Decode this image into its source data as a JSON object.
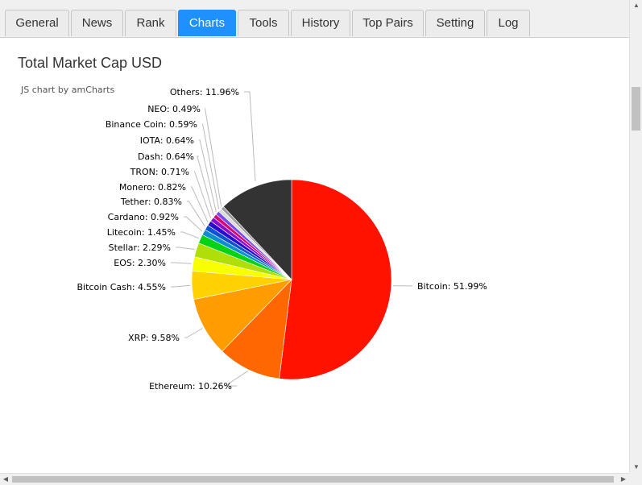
{
  "tabs": [
    {
      "label": "General",
      "active": false
    },
    {
      "label": "News",
      "active": false
    },
    {
      "label": "Rank",
      "active": false
    },
    {
      "label": "Charts",
      "active": true
    },
    {
      "label": "Tools",
      "active": false
    },
    {
      "label": "History",
      "active": false
    },
    {
      "label": "Top Pairs",
      "active": false
    },
    {
      "label": "Setting",
      "active": false
    },
    {
      "label": "Log",
      "active": false
    }
  ],
  "chart_title": "Total Market Cap USD",
  "credit": "JS chart by amCharts",
  "scrollbars": {
    "up": "▲",
    "down": "▼",
    "left": "◀",
    "right": "▶"
  },
  "chart_data": {
    "type": "pie",
    "title": "Total Market Cap USD",
    "slices": [
      {
        "name": "Bitcoin",
        "value": 51.99,
        "label": "Bitcoin: 51.99%",
        "color": "#ff1200"
      },
      {
        "name": "Ethereum",
        "value": 10.26,
        "label": "Ethereum: 10.26%",
        "color": "#ff6700"
      },
      {
        "name": "XRP",
        "value": 9.58,
        "label": "XRP: 9.58%",
        "color": "#ff9d00"
      },
      {
        "name": "Bitcoin Cash",
        "value": 4.55,
        "label": "Bitcoin Cash: 4.55%",
        "color": "#ffd200"
      },
      {
        "name": "EOS",
        "value": 2.3,
        "label": "EOS: 2.30%",
        "color": "#f8ff00"
      },
      {
        "name": "Stellar",
        "value": 2.29,
        "label": "Stellar: 2.29%",
        "color": "#b0de09"
      },
      {
        "name": "Litecoin",
        "value": 1.45,
        "label": "Litecoin: 1.45%",
        "color": "#04d215"
      },
      {
        "name": "Cardano",
        "value": 0.92,
        "label": "Cardano: 0.92%",
        "color": "#0d8ecf"
      },
      {
        "name": "Tether",
        "value": 0.83,
        "label": "Tether: 0.83%",
        "color": "#0d52d1"
      },
      {
        "name": "Monero",
        "value": 0.82,
        "label": "Monero: 0.82%",
        "color": "#2a0cd0"
      },
      {
        "name": "TRON",
        "value": 0.71,
        "label": "TRON: 0.71%",
        "color": "#8a0ccf"
      },
      {
        "name": "Dash",
        "value": 0.64,
        "label": "Dash: 0.64%",
        "color": "#cd0d74"
      },
      {
        "name": "IOTA",
        "value": 0.64,
        "label": "IOTA: 0.64%",
        "color": "#754deb"
      },
      {
        "name": "Binance Coin",
        "value": 0.59,
        "label": "Binance Coin: 0.59%",
        "color": "#dddddd"
      },
      {
        "name": "NEO",
        "value": 0.49,
        "label": "NEO: 0.49%",
        "color": "#999999"
      },
      {
        "name": "Others",
        "value": 11.96,
        "label": "Others: 11.96%",
        "color": "#333333"
      }
    ]
  }
}
